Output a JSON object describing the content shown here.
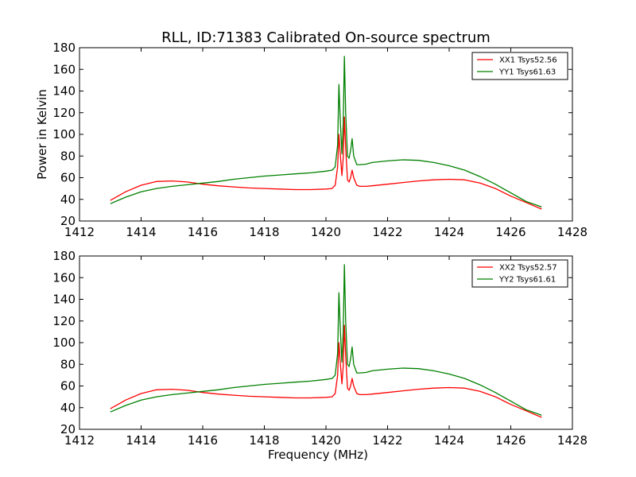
{
  "title": "RLL, ID:71383 Calibrated On-source spectrum",
  "colors": {
    "XX": "#ff0000",
    "YY": "#008000",
    "axes": "#000000"
  },
  "chart_data": [
    {
      "type": "line",
      "title": "RLL, ID:71383 Calibrated On-source spectrum",
      "xlabel": "",
      "ylabel": "Power in Kelvin",
      "xlim": [
        1412,
        1428
      ],
      "ylim": [
        20,
        180
      ],
      "xticks": [
        1412,
        1414,
        1416,
        1418,
        1420,
        1422,
        1424,
        1426,
        1428
      ],
      "yticks": [
        20,
        40,
        60,
        80,
        100,
        120,
        140,
        160,
        180
      ],
      "grid": false,
      "legend_position": "top-right",
      "series": [
        {
          "name": "XX1 Tsys52.56",
          "color": "#ff0000",
          "x": [
            1413.0,
            1413.5,
            1414.0,
            1414.5,
            1415.0,
            1415.5,
            1416.0,
            1416.5,
            1417.0,
            1417.5,
            1418.0,
            1418.5,
            1419.0,
            1419.5,
            1420.0,
            1420.2,
            1420.3,
            1420.38,
            1420.42,
            1420.47,
            1420.52,
            1420.56,
            1420.6,
            1420.64,
            1420.7,
            1420.75,
            1420.8,
            1420.85,
            1420.9,
            1421.0,
            1421.1,
            1421.3,
            1421.5,
            1422.0,
            1422.5,
            1423.0,
            1423.5,
            1424.0,
            1424.5,
            1425.0,
            1425.5,
            1426.0,
            1426.5,
            1427.0
          ],
          "y": [
            39,
            47,
            53,
            56.5,
            57,
            56,
            54,
            52.5,
            51.5,
            50.5,
            50,
            49.5,
            49,
            49,
            49.5,
            50,
            53,
            70,
            100,
            80,
            62,
            78,
            116,
            88,
            58,
            56,
            60,
            67,
            60,
            53,
            52,
            52,
            52.5,
            54,
            55.5,
            57,
            58,
            58.5,
            58,
            55,
            50,
            43,
            37,
            31
          ]
        },
        {
          "name": "YY1 Tsys61.63",
          "color": "#008000",
          "x": [
            1413.0,
            1413.5,
            1414.0,
            1414.5,
            1415.0,
            1415.5,
            1416.0,
            1416.5,
            1417.0,
            1417.5,
            1418.0,
            1418.5,
            1419.0,
            1419.5,
            1420.0,
            1420.2,
            1420.3,
            1420.38,
            1420.42,
            1420.47,
            1420.52,
            1420.56,
            1420.6,
            1420.64,
            1420.7,
            1420.75,
            1420.8,
            1420.85,
            1420.9,
            1421.0,
            1421.1,
            1421.3,
            1421.5,
            1422.0,
            1422.5,
            1423.0,
            1423.5,
            1424.0,
            1424.5,
            1425.0,
            1425.5,
            1426.0,
            1426.5,
            1427.0
          ],
          "y": [
            36,
            42,
            47,
            50,
            52,
            53.5,
            55,
            56.5,
            58.5,
            60,
            61.5,
            62.5,
            63.5,
            64.5,
            66,
            67,
            70,
            90,
            146,
            110,
            82,
            110,
            172,
            120,
            80,
            78,
            85,
            96,
            80,
            72,
            72,
            72.5,
            74,
            75.5,
            76.5,
            76,
            74,
            71,
            67,
            61,
            54,
            46,
            38,
            33
          ]
        }
      ]
    },
    {
      "type": "line",
      "title": "",
      "xlabel": "Frequency (MHz)",
      "ylabel": "",
      "xlim": [
        1412,
        1428
      ],
      "ylim": [
        20,
        180
      ],
      "xticks": [
        1412,
        1414,
        1416,
        1418,
        1420,
        1422,
        1424,
        1426,
        1428
      ],
      "yticks": [
        20,
        40,
        60,
        80,
        100,
        120,
        140,
        160,
        180
      ],
      "grid": false,
      "legend_position": "top-right",
      "series": [
        {
          "name": "XX2 Tsys52.57",
          "color": "#ff0000",
          "x": [
            1413.0,
            1413.5,
            1414.0,
            1414.5,
            1415.0,
            1415.5,
            1416.0,
            1416.5,
            1417.0,
            1417.5,
            1418.0,
            1418.5,
            1419.0,
            1419.5,
            1420.0,
            1420.2,
            1420.3,
            1420.38,
            1420.42,
            1420.47,
            1420.52,
            1420.56,
            1420.6,
            1420.64,
            1420.7,
            1420.75,
            1420.8,
            1420.85,
            1420.9,
            1421.0,
            1421.1,
            1421.3,
            1421.5,
            1422.0,
            1422.5,
            1423.0,
            1423.5,
            1424.0,
            1424.5,
            1425.0,
            1425.5,
            1426.0,
            1426.5,
            1427.0
          ],
          "y": [
            39,
            47,
            53,
            56.5,
            57,
            56,
            54,
            52.5,
            51.5,
            50.5,
            50,
            49.5,
            49,
            49,
            49.5,
            50,
            53,
            70,
            100,
            80,
            62,
            78,
            116,
            88,
            58,
            56,
            60,
            67,
            60,
            53,
            52,
            52,
            52.5,
            54,
            55.5,
            57,
            58,
            58.5,
            58,
            55,
            50,
            43,
            37,
            31
          ]
        },
        {
          "name": "YY2 Tsys61.61",
          "color": "#008000",
          "x": [
            1413.0,
            1413.5,
            1414.0,
            1414.5,
            1415.0,
            1415.5,
            1416.0,
            1416.5,
            1417.0,
            1417.5,
            1418.0,
            1418.5,
            1419.0,
            1419.5,
            1420.0,
            1420.2,
            1420.3,
            1420.38,
            1420.42,
            1420.47,
            1420.52,
            1420.56,
            1420.6,
            1420.64,
            1420.7,
            1420.75,
            1420.8,
            1420.85,
            1420.9,
            1421.0,
            1421.1,
            1421.3,
            1421.5,
            1422.0,
            1422.5,
            1423.0,
            1423.5,
            1424.0,
            1424.5,
            1425.0,
            1425.5,
            1426.0,
            1426.5,
            1427.0
          ],
          "y": [
            36,
            42,
            47,
            50,
            52,
            53.5,
            55,
            56.5,
            58.5,
            60,
            61.5,
            62.5,
            63.5,
            64.5,
            66,
            67,
            70,
            90,
            146,
            110,
            82,
            110,
            172,
            120,
            80,
            78,
            85,
            96,
            80,
            72,
            72,
            72.5,
            74,
            75.5,
            76.5,
            76,
            74,
            71,
            67,
            61,
            54,
            46,
            38,
            33
          ]
        }
      ]
    }
  ]
}
